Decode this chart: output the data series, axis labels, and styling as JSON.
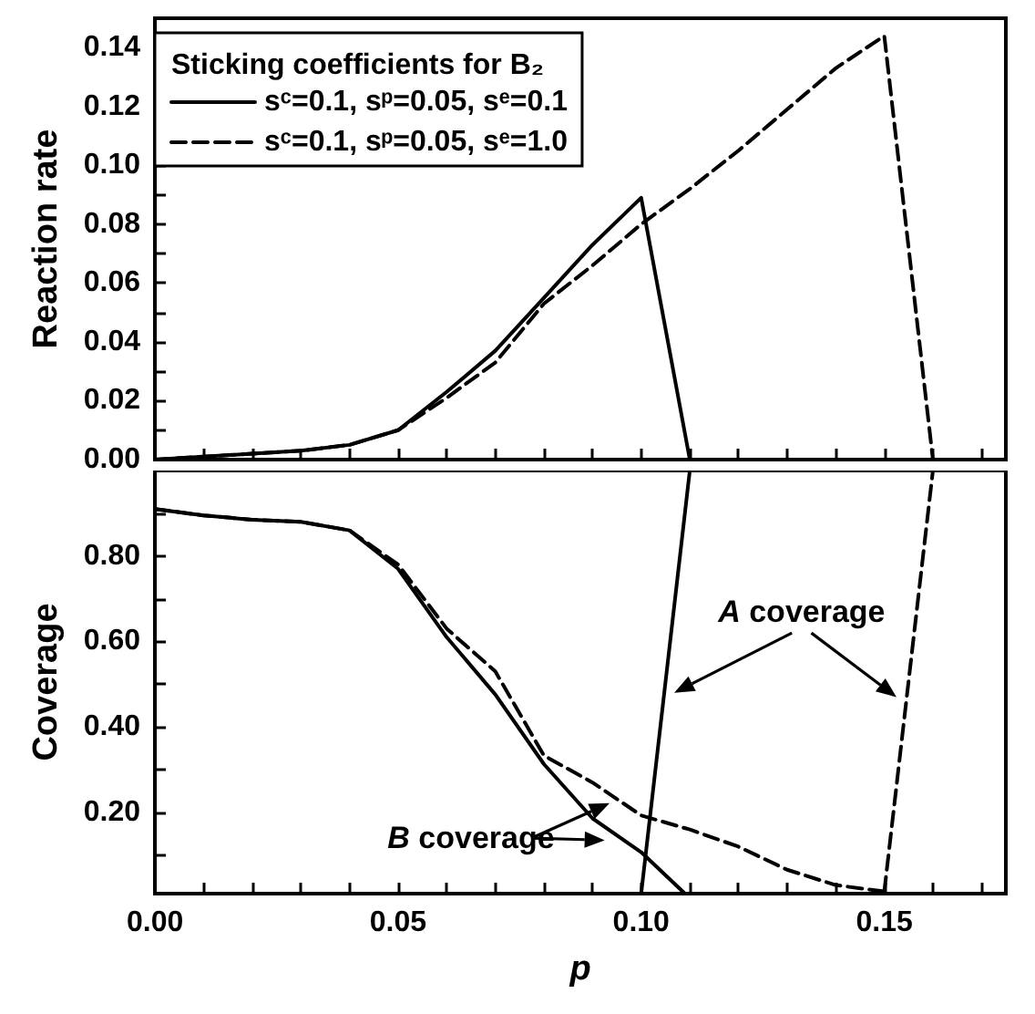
{
  "chart_data": [
    {
      "type": "line",
      "ylabel": "Reaction rate",
      "legend_title": "Sticking coefficients for B₂",
      "legend": "top left",
      "grid": false,
      "marker": "none",
      "tick_labels": "y",
      "xlim": [
        0,
        0.175
      ],
      "ylim": [
        0,
        0.15
      ],
      "xticks": [
        {
          "value": 0,
          "label": null
        },
        {
          "value": 0.01,
          "label": null
        },
        {
          "value": 0.02,
          "label": null
        },
        {
          "value": 0.03,
          "label": null
        },
        {
          "value": 0.04,
          "label": null
        },
        {
          "value": 0.05,
          "label": null
        },
        {
          "value": 0.06,
          "label": null
        },
        {
          "value": 0.07,
          "label": null
        },
        {
          "value": 0.08,
          "label": null
        },
        {
          "value": 0.09,
          "label": null
        },
        {
          "value": 0.1,
          "label": null
        },
        {
          "value": 0.11,
          "label": null
        },
        {
          "value": 0.12,
          "label": null
        },
        {
          "value": 0.13,
          "label": null
        },
        {
          "value": 0.14,
          "label": null
        },
        {
          "value": 0.15,
          "label": null
        },
        {
          "value": 0.16,
          "label": null
        },
        {
          "value": 0.17,
          "label": null
        }
      ],
      "yticks": [
        {
          "value": 0,
          "label": "0.00"
        },
        {
          "value": 0.01,
          "label": null
        },
        {
          "value": 0.02,
          "label": "0.02"
        },
        {
          "value": 0.03,
          "label": null
        },
        {
          "value": 0.04,
          "label": "0.04"
        },
        {
          "value": 0.05,
          "label": null
        },
        {
          "value": 0.06,
          "label": "0.06"
        },
        {
          "value": 0.07,
          "label": null
        },
        {
          "value": 0.08,
          "label": "0.08"
        },
        {
          "value": 0.09,
          "label": null
        },
        {
          "value": 0.1,
          "label": "0.10"
        },
        {
          "value": 0.11,
          "label": null
        },
        {
          "value": 0.12,
          "label": "0.12"
        },
        {
          "value": 0.13,
          "label": null
        },
        {
          "value": 0.14,
          "label": "0.14"
        }
      ],
      "series": [
        {
          "name": "sᶜ=0.1, sᵖ=0.05, sᵉ=0.1",
          "color": "#000000",
          "line_style": "solid",
          "x": [
            0,
            0.01,
            0.02,
            0.03,
            0.04,
            0.05,
            0.06,
            0.07,
            0.08,
            0.09,
            0.1,
            0.11
          ],
          "values": [
            0,
            0.001,
            0.002,
            0.003,
            0.005,
            0.01,
            0.023,
            0.037,
            0.055,
            0.073,
            0.089,
            0
          ]
        },
        {
          "name": "sᶜ=0.1, sᵖ=0.05, sᵉ=1.0",
          "color": "#000000",
          "line_style": "dashed",
          "x": [
            0,
            0.01,
            0.02,
            0.03,
            0.04,
            0.05,
            0.06,
            0.07,
            0.08,
            0.09,
            0.1,
            0.11,
            0.12,
            0.13,
            0.14,
            0.15,
            0.16,
            0.17
          ],
          "values": [
            0,
            0.001,
            0.002,
            0.003,
            0.005,
            0.01,
            0.021,
            0.033,
            0.053,
            0.066,
            0.08,
            0.092,
            0.105,
            0.119,
            0.133,
            0.144,
            0,
            0
          ]
        }
      ]
    },
    {
      "type": "line",
      "ylabel": "Coverage",
      "xlabel": "p",
      "grid": false,
      "marker": "none",
      "xlim": [
        0,
        0.175
      ],
      "ylim": [
        0.01,
        1.0
      ],
      "xticks": [
        {
          "value": 0,
          "label": "0.00"
        },
        {
          "value": 0.01,
          "label": null
        },
        {
          "value": 0.02,
          "label": null
        },
        {
          "value": 0.03,
          "label": null
        },
        {
          "value": 0.04,
          "label": null
        },
        {
          "value": 0.05,
          "label": "0.05"
        },
        {
          "value": 0.06,
          "label": null
        },
        {
          "value": 0.07,
          "label": null
        },
        {
          "value": 0.08,
          "label": null
        },
        {
          "value": 0.09,
          "label": null
        },
        {
          "value": 0.1,
          "label": "0.10"
        },
        {
          "value": 0.11,
          "label": null
        },
        {
          "value": 0.12,
          "label": null
        },
        {
          "value": 0.13,
          "label": null
        },
        {
          "value": 0.14,
          "label": null
        },
        {
          "value": 0.15,
          "label": "0.15"
        },
        {
          "value": 0.16,
          "label": null
        },
        {
          "value": 0.17,
          "label": null
        }
      ],
      "yticks": [
        {
          "value": 0.1,
          "label": null
        },
        {
          "value": 0.2,
          "label": "0.20"
        },
        {
          "value": 0.3,
          "label": null
        },
        {
          "value": 0.4,
          "label": "0.40"
        },
        {
          "value": 0.5,
          "label": null
        },
        {
          "value": 0.6,
          "label": "0.60"
        },
        {
          "value": 0.7,
          "label": null
        },
        {
          "value": 0.8,
          "label": "0.80"
        },
        {
          "value": 0.9,
          "label": null
        }
      ],
      "annotations": [
        "A coverage",
        "B coverage"
      ],
      "series": [
        {
          "color": "#000000",
          "line_style": "solid",
          "x": [
            0,
            0.01,
            0.02,
            0.03,
            0.04,
            0.05,
            0.06,
            0.07,
            0.08,
            0.09,
            0.1,
            0.109
          ],
          "values": [
            0.91,
            0.895,
            0.885,
            0.88,
            0.86,
            0.77,
            0.61,
            0.476,
            0.313,
            0.186,
            0.107,
            0.01
          ]
        },
        {
          "color": "#000000",
          "line_style": "dashed",
          "x": [
            0,
            0.01,
            0.02,
            0.03,
            0.04,
            0.05,
            0.06,
            0.07,
            0.08,
            0.09,
            0.1,
            0.11,
            0.12,
            0.13,
            0.14,
            0.15
          ],
          "values": [
            0.91,
            0.895,
            0.885,
            0.88,
            0.86,
            0.78,
            0.63,
            0.53,
            0.333,
            0.27,
            0.193,
            0.16,
            0.12,
            0.066,
            0.03,
            0.015
          ]
        },
        {
          "color": "#000000",
          "line_style": "solid",
          "x": [
            0.1,
            0.11
          ],
          "values": [
            0.01,
            1.0
          ]
        },
        {
          "color": "#000000",
          "line_style": "dashed",
          "x": [
            0.15,
            0.16
          ],
          "values": [
            0.015,
            1.0
          ]
        }
      ]
    }
  ]
}
